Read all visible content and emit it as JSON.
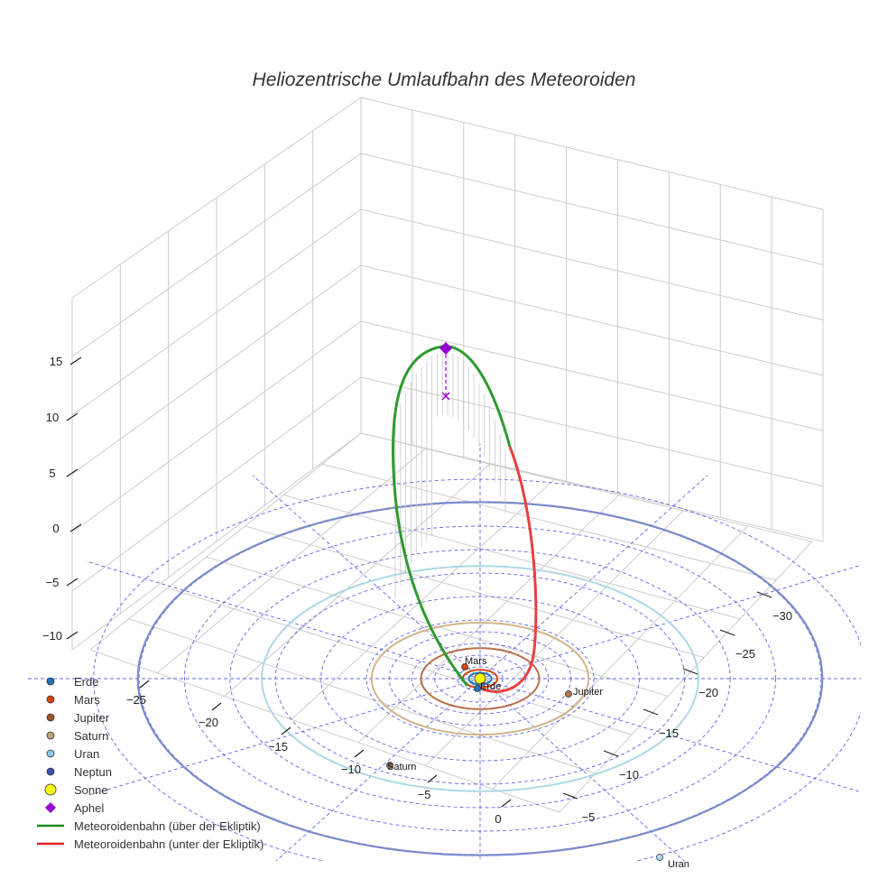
{
  "chart_data": {
    "type": "scatter3d",
    "title": "Heliozentrische Umlaufbahn des Meteoroiden",
    "axes": {
      "z_ticks": [
        15,
        10,
        5,
        0,
        -5,
        -10
      ],
      "left_ticks": [
        -25,
        -20,
        -15,
        -10,
        -5,
        0
      ],
      "right_ticks": [
        -30,
        -25,
        -20,
        -15,
        -10,
        -5
      ]
    },
    "planets": [
      {
        "name": "Erde",
        "orbit_radius": 1.0,
        "color": "#1f77b4",
        "show_label": true
      },
      {
        "name": "Mars",
        "orbit_radius": 1.52,
        "color": "#d4450c",
        "show_label": true
      },
      {
        "name": "Jupiter",
        "orbit_radius": 5.2,
        "color": "#b87048",
        "show_label": true
      },
      {
        "name": "Saturn",
        "orbit_radius": 9.54,
        "color": "#d2b48c",
        "show_label": true
      },
      {
        "name": "Uran",
        "orbit_radius": 19.2,
        "color": "#add8e6",
        "show_label": true
      },
      {
        "name": "Neptun",
        "orbit_radius": 30.1,
        "color": "#7b8cc9",
        "show_label": false
      }
    ],
    "legend": [
      {
        "label": "Erde",
        "marker": "circle",
        "color": "#1f77b4"
      },
      {
        "label": "Mars",
        "marker": "circle",
        "color": "#d4450c"
      },
      {
        "label": "Jupiter",
        "marker": "circle",
        "color": "#a0522d"
      },
      {
        "label": "Saturn",
        "marker": "circle",
        "color": "#c2a27a"
      },
      {
        "label": "Uran",
        "marker": "circle",
        "color": "#87ceeb"
      },
      {
        "label": "Neptun",
        "marker": "circle",
        "color": "#3f51b5"
      },
      {
        "label": "Sonne",
        "marker": "big-circle",
        "color": "#ffff00"
      },
      {
        "label": "Aphel",
        "marker": "diamond",
        "color": "#9400d3"
      },
      {
        "label": "Meteoroidenbahn (über der Ekliptik)",
        "marker": "line",
        "color": "#1a8a1a"
      },
      {
        "label": "Meteoroidenbahn (unter der Ekliptik)",
        "marker": "line",
        "color": "#e32222"
      }
    ],
    "meteoroid": {
      "above_color": "#2e9a2e",
      "below_color": "#e84040",
      "aphel_color": "#9400d3"
    }
  }
}
